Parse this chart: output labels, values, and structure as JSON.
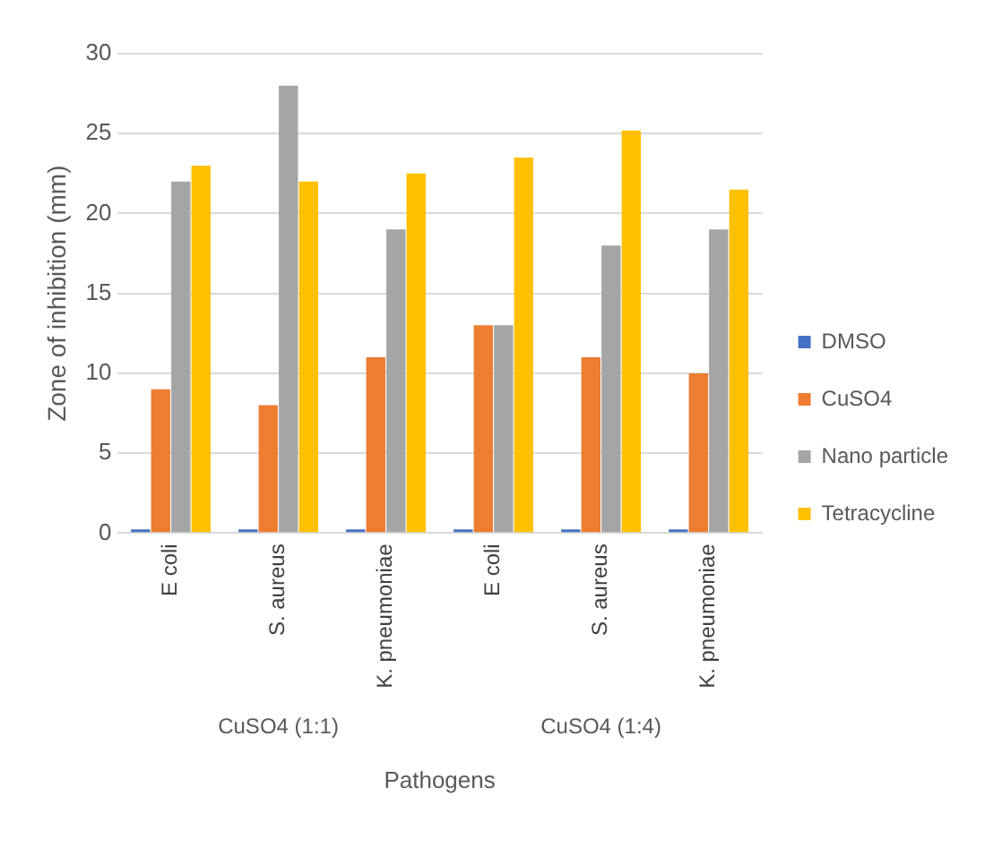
{
  "chart_data": {
    "type": "bar",
    "xlabel": "Pathogens",
    "ylabel": "Zone of inhibition (mm)",
    "categories": [
      "E coli",
      "S. aureus",
      "K. pneumoniae",
      "E coli",
      "S. aureus",
      "K. pneumoniae"
    ],
    "series": [
      {
        "name": "DMSO",
        "color": "#4472c4",
        "values": [
          0,
          0,
          0,
          0,
          0,
          0
        ]
      },
      {
        "name": "CuSO4",
        "color": "#ed7d31",
        "values": [
          9,
          8,
          11,
          13,
          11,
          10
        ]
      },
      {
        "name": "Nano particle",
        "color": "#a5a5a5",
        "values": [
          22,
          28,
          19,
          13,
          18,
          19
        ]
      },
      {
        "name": "Tetracycline",
        "color": "#ffc000",
        "values": [
          23,
          22,
          22.5,
          23.5,
          25.2,
          21.5
        ]
      }
    ],
    "ylim": [
      0,
      30
    ],
    "yticks": [
      0,
      5,
      10,
      15,
      20,
      25,
      30
    ],
    "grid": "y",
    "legend": "right",
    "annotations": [
      "CuSO4 (1:1)",
      "CuSO4 (1:4)"
    ]
  }
}
